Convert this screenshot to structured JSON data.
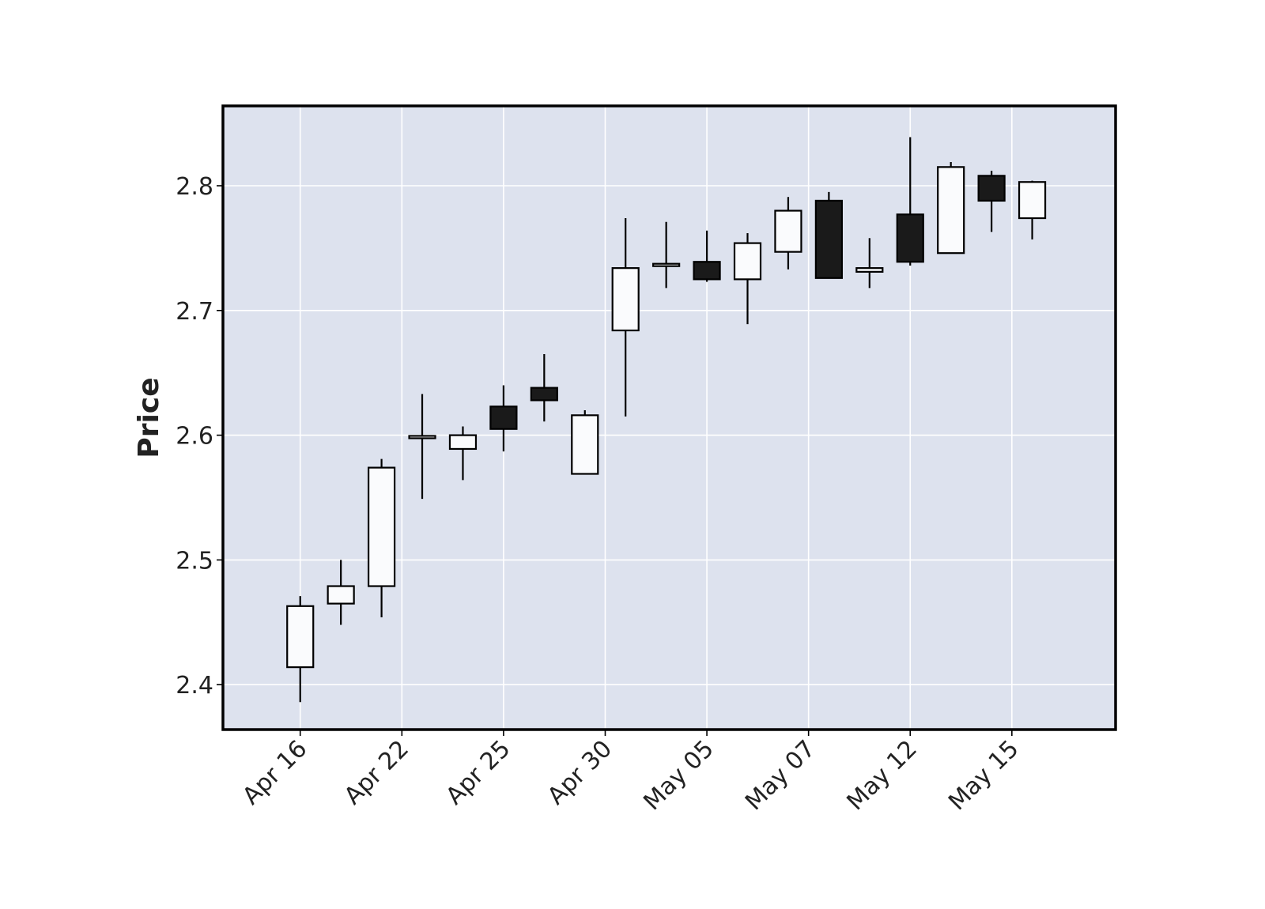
{
  "chart_data": {
    "type": "candlestick",
    "title": "",
    "xlabel": "",
    "ylabel": "Price",
    "ylim": [
      2.364,
      2.864
    ],
    "y_ticks": [
      2.4,
      2.5,
      2.6,
      2.7,
      2.8
    ],
    "y_tick_labels": [
      "2.4",
      "2.5",
      "2.6",
      "2.7",
      "2.8"
    ],
    "x_tick_labels": [
      "Apr 16",
      "Apr 22",
      "Apr 25",
      "Apr 30",
      "May 05",
      "May 07",
      "May 12",
      "May 15"
    ],
    "x_tick_indices": [
      0,
      2.5,
      5,
      7.5,
      10,
      12.5,
      15,
      17.5
    ],
    "grid": true,
    "colors": {
      "background": "#dde2ee",
      "grid": "#ffffff",
      "up_body": "#fafbfd",
      "down_body": "#1a1a1a",
      "edge": "#000000",
      "frame": "#000000"
    },
    "candles": [
      {
        "open": 2.414,
        "high": 2.471,
        "low": 2.386,
        "close": 2.463
      },
      {
        "open": 2.465,
        "high": 2.5,
        "low": 2.448,
        "close": 2.479
      },
      {
        "open": 2.479,
        "high": 2.581,
        "low": 2.454,
        "close": 2.574
      },
      {
        "open": 2.598,
        "high": 2.633,
        "low": 2.549,
        "close": 2.599
      },
      {
        "open": 2.589,
        "high": 2.607,
        "low": 2.564,
        "close": 2.6
      },
      {
        "open": 2.623,
        "high": 2.64,
        "low": 2.587,
        "close": 2.605
      },
      {
        "open": 2.638,
        "high": 2.665,
        "low": 2.611,
        "close": 2.628
      },
      {
        "open": 2.569,
        "high": 2.62,
        "low": 2.569,
        "close": 2.616
      },
      {
        "open": 2.684,
        "high": 2.774,
        "low": 2.615,
        "close": 2.734
      },
      {
        "open": 2.736,
        "high": 2.771,
        "low": 2.718,
        "close": 2.737
      },
      {
        "open": 2.739,
        "high": 2.764,
        "low": 2.723,
        "close": 2.725
      },
      {
        "open": 2.725,
        "high": 2.762,
        "low": 2.689,
        "close": 2.754
      },
      {
        "open": 2.747,
        "high": 2.791,
        "low": 2.733,
        "close": 2.78
      },
      {
        "open": 2.788,
        "high": 2.795,
        "low": 2.726,
        "close": 2.726
      },
      {
        "open": 2.731,
        "high": 2.758,
        "low": 2.718,
        "close": 2.734
      },
      {
        "open": 2.777,
        "high": 2.839,
        "low": 2.736,
        "close": 2.739
      },
      {
        "open": 2.746,
        "high": 2.819,
        "low": 2.746,
        "close": 2.815
      },
      {
        "open": 2.808,
        "high": 2.812,
        "low": 2.763,
        "close": 2.788
      },
      {
        "open": 2.774,
        "high": 2.804,
        "low": 2.757,
        "close": 2.803
      }
    ]
  }
}
